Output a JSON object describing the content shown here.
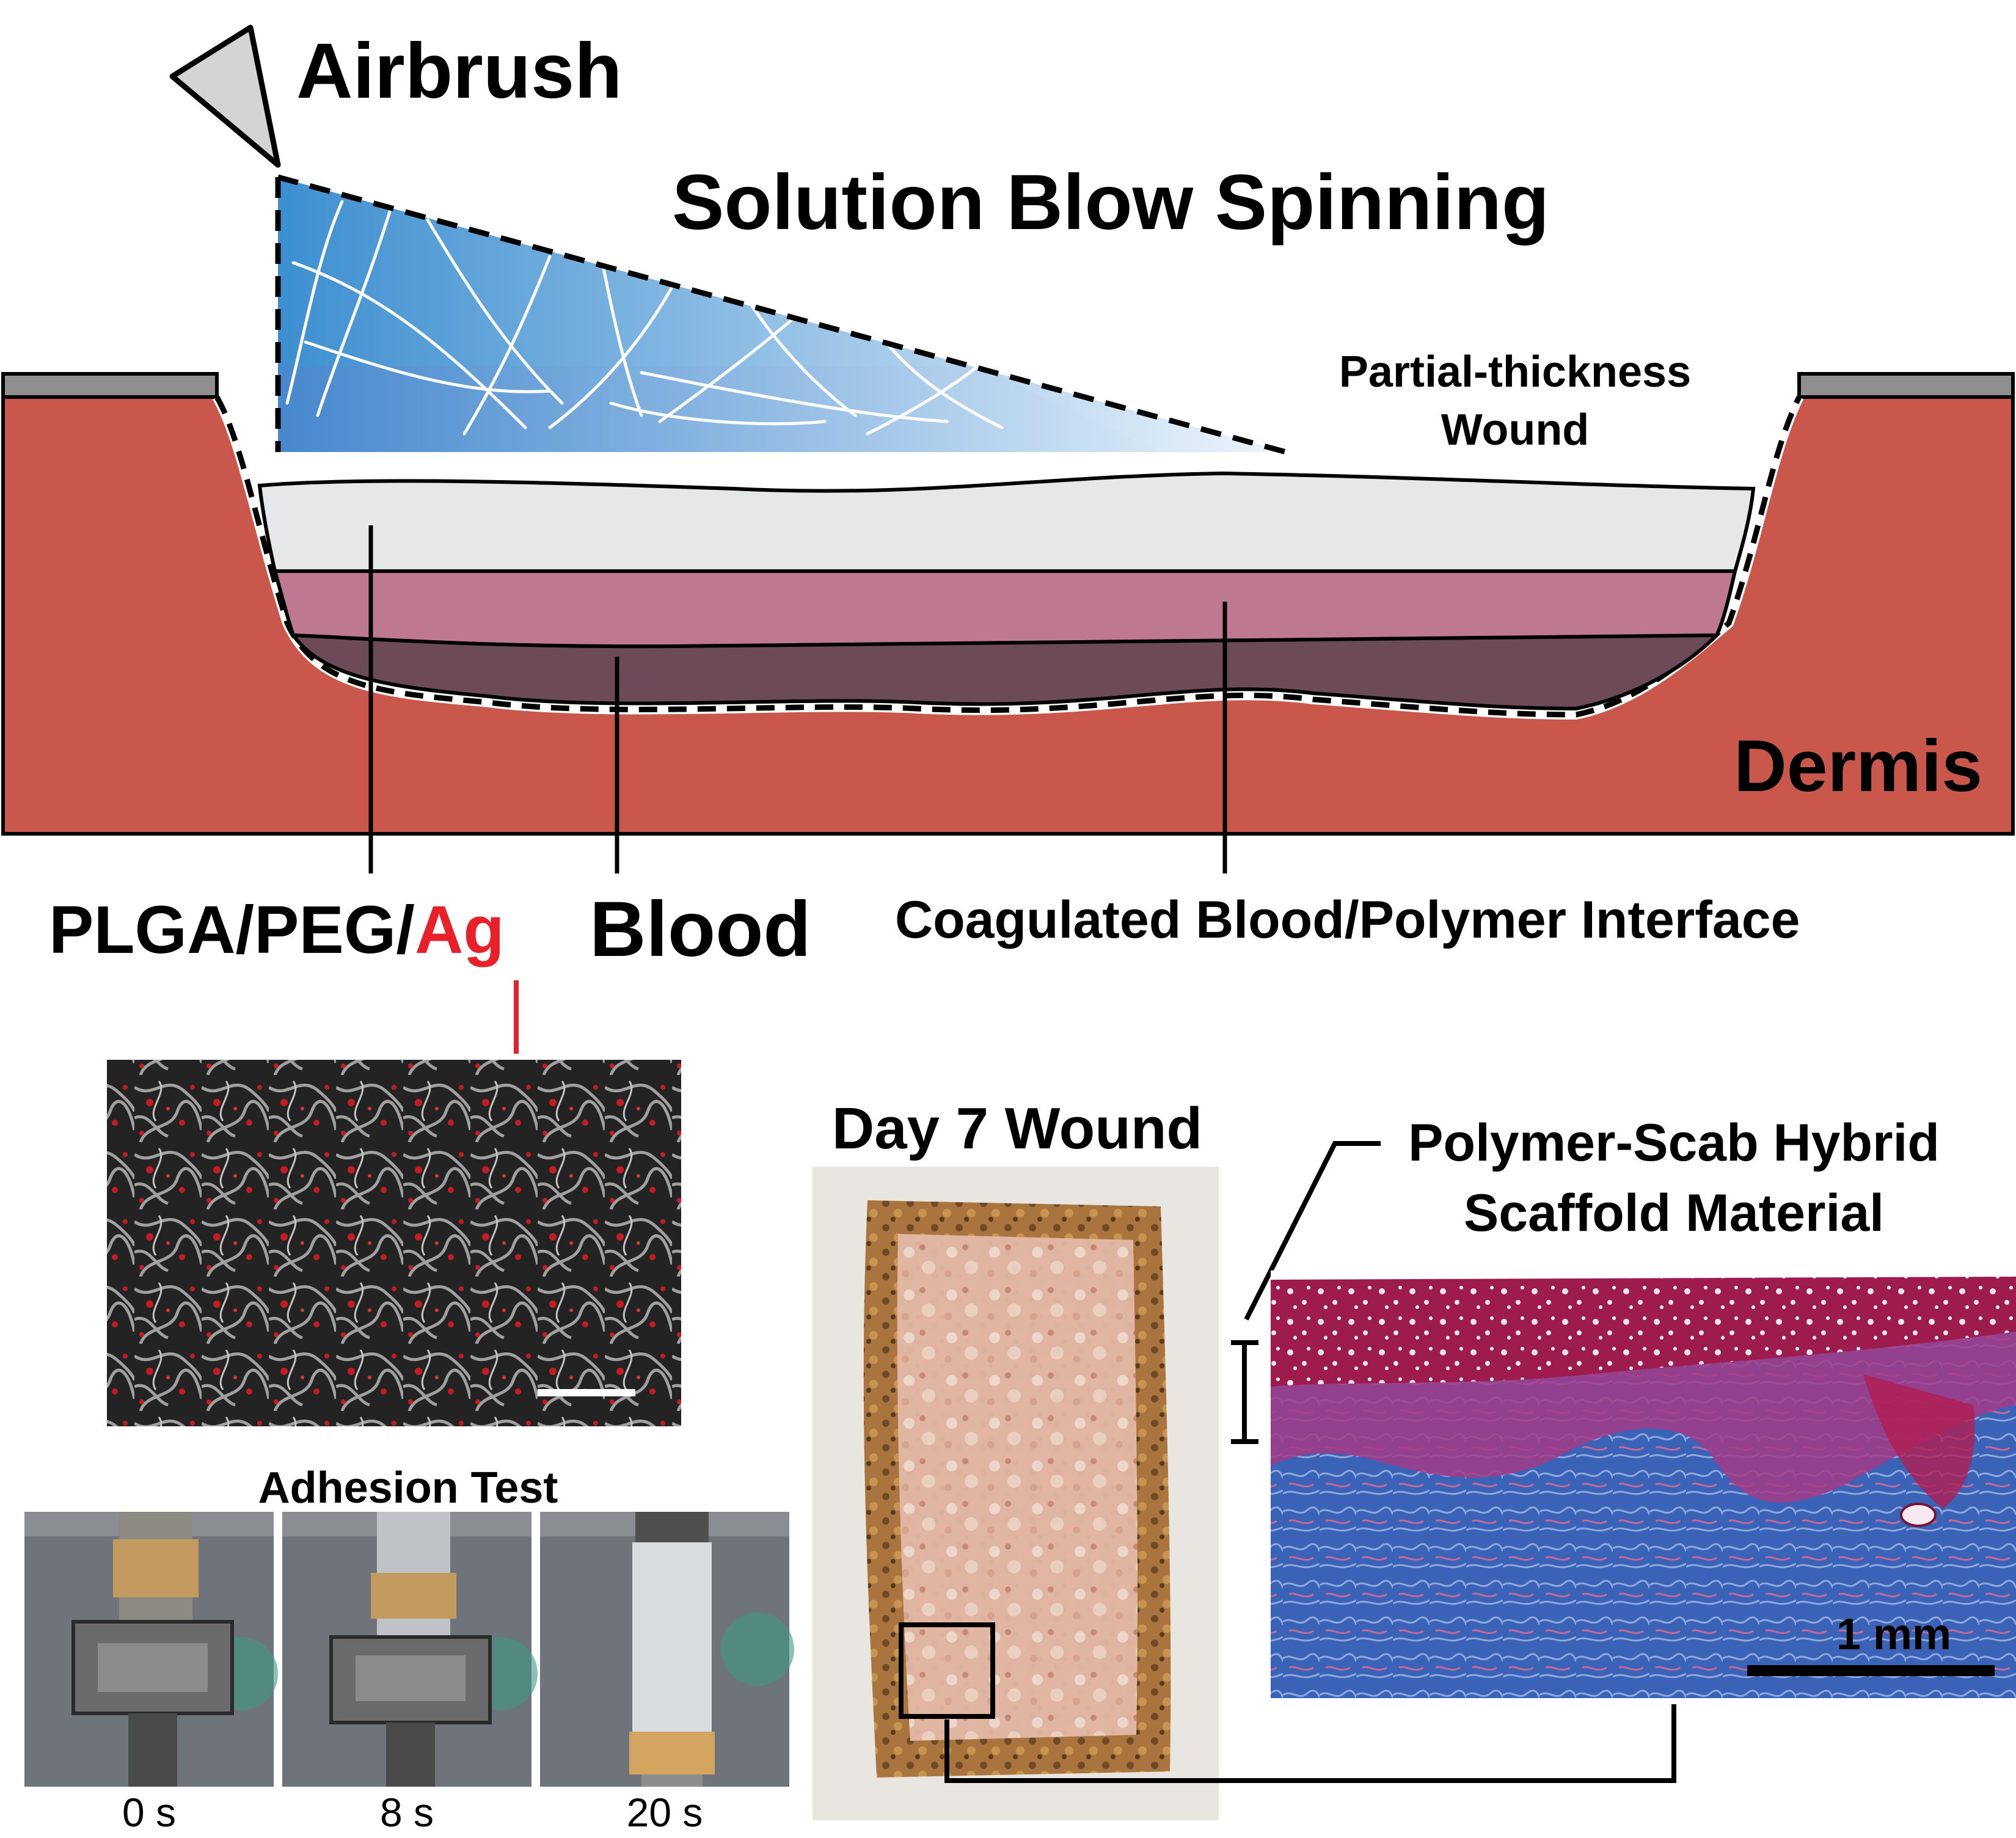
{
  "title": "Solution Blow Spinning",
  "labels": {
    "airbrush": "Airbrush",
    "wound_line1": "Partial-thickness",
    "wound_line2": "Wound",
    "dermis": "Dermis",
    "plga_prefix": "PLGA/PEG/",
    "ag": "Ag",
    "blood": "Blood",
    "interface": "Coagulated Blood/Polymer Interface",
    "adhesion_test": "Adhesion Test",
    "day7": "Day 7 Wound",
    "hybrid_line1": "Polymer-Scab Hybrid",
    "hybrid_line2": "Scaffold Material",
    "scale_bar": "1 mm"
  },
  "adhesion_frames": [
    "0 s",
    "8 s",
    "20 s"
  ],
  "colors": {
    "dermis": "#c9574b",
    "skin_edge": "#8f8f8f",
    "polymer_layer": "#e6e7e9",
    "blood_layer": "#bf7892",
    "coagulated_layer": "#6c4a58",
    "spray_top": "#3d8fd0",
    "spray_end": "#e8f2fb",
    "ag_red": "#e8202a",
    "histology_red": "#b21d52",
    "histology_blue": "#3a63b8"
  }
}
